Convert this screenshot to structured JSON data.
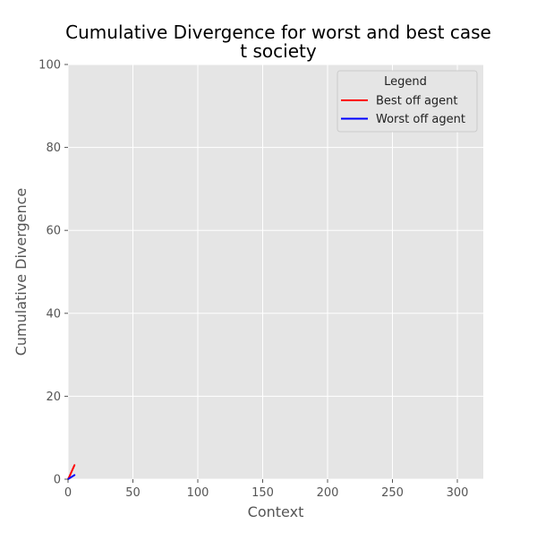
{
  "chart_data": {
    "type": "line",
    "title_line1": "Cumulative Divergence for worst and best case",
    "title_line2": "t society",
    "xlabel": "Context",
    "ylabel": "Cumulative Divergence",
    "xlim": [
      0,
      320
    ],
    "ylim": [
      0,
      100
    ],
    "xticks": [
      0,
      50,
      100,
      150,
      200,
      250,
      300
    ],
    "yticks": [
      0,
      20,
      40,
      60,
      80,
      100
    ],
    "grid": true,
    "legend": {
      "title": "Legend",
      "placement": "upper-right"
    },
    "series": [
      {
        "name": "Best off agent",
        "color": "#ff0000",
        "x": [
          0,
          1,
          2,
          3,
          4,
          5
        ],
        "y": [
          0.0,
          0.6,
          1.3,
          2.0,
          2.7,
          3.4
        ]
      },
      {
        "name": "Worst off agent",
        "color": "#0000ff",
        "x": [
          0,
          1,
          2,
          3,
          4,
          5
        ],
        "y": [
          0.0,
          0.2,
          0.4,
          0.6,
          0.8,
          1.0
        ]
      }
    ]
  },
  "colors": {
    "plot_background": "#e5e5e5",
    "grid": "#ffffff",
    "text": "#555555",
    "title": "#000000"
  }
}
